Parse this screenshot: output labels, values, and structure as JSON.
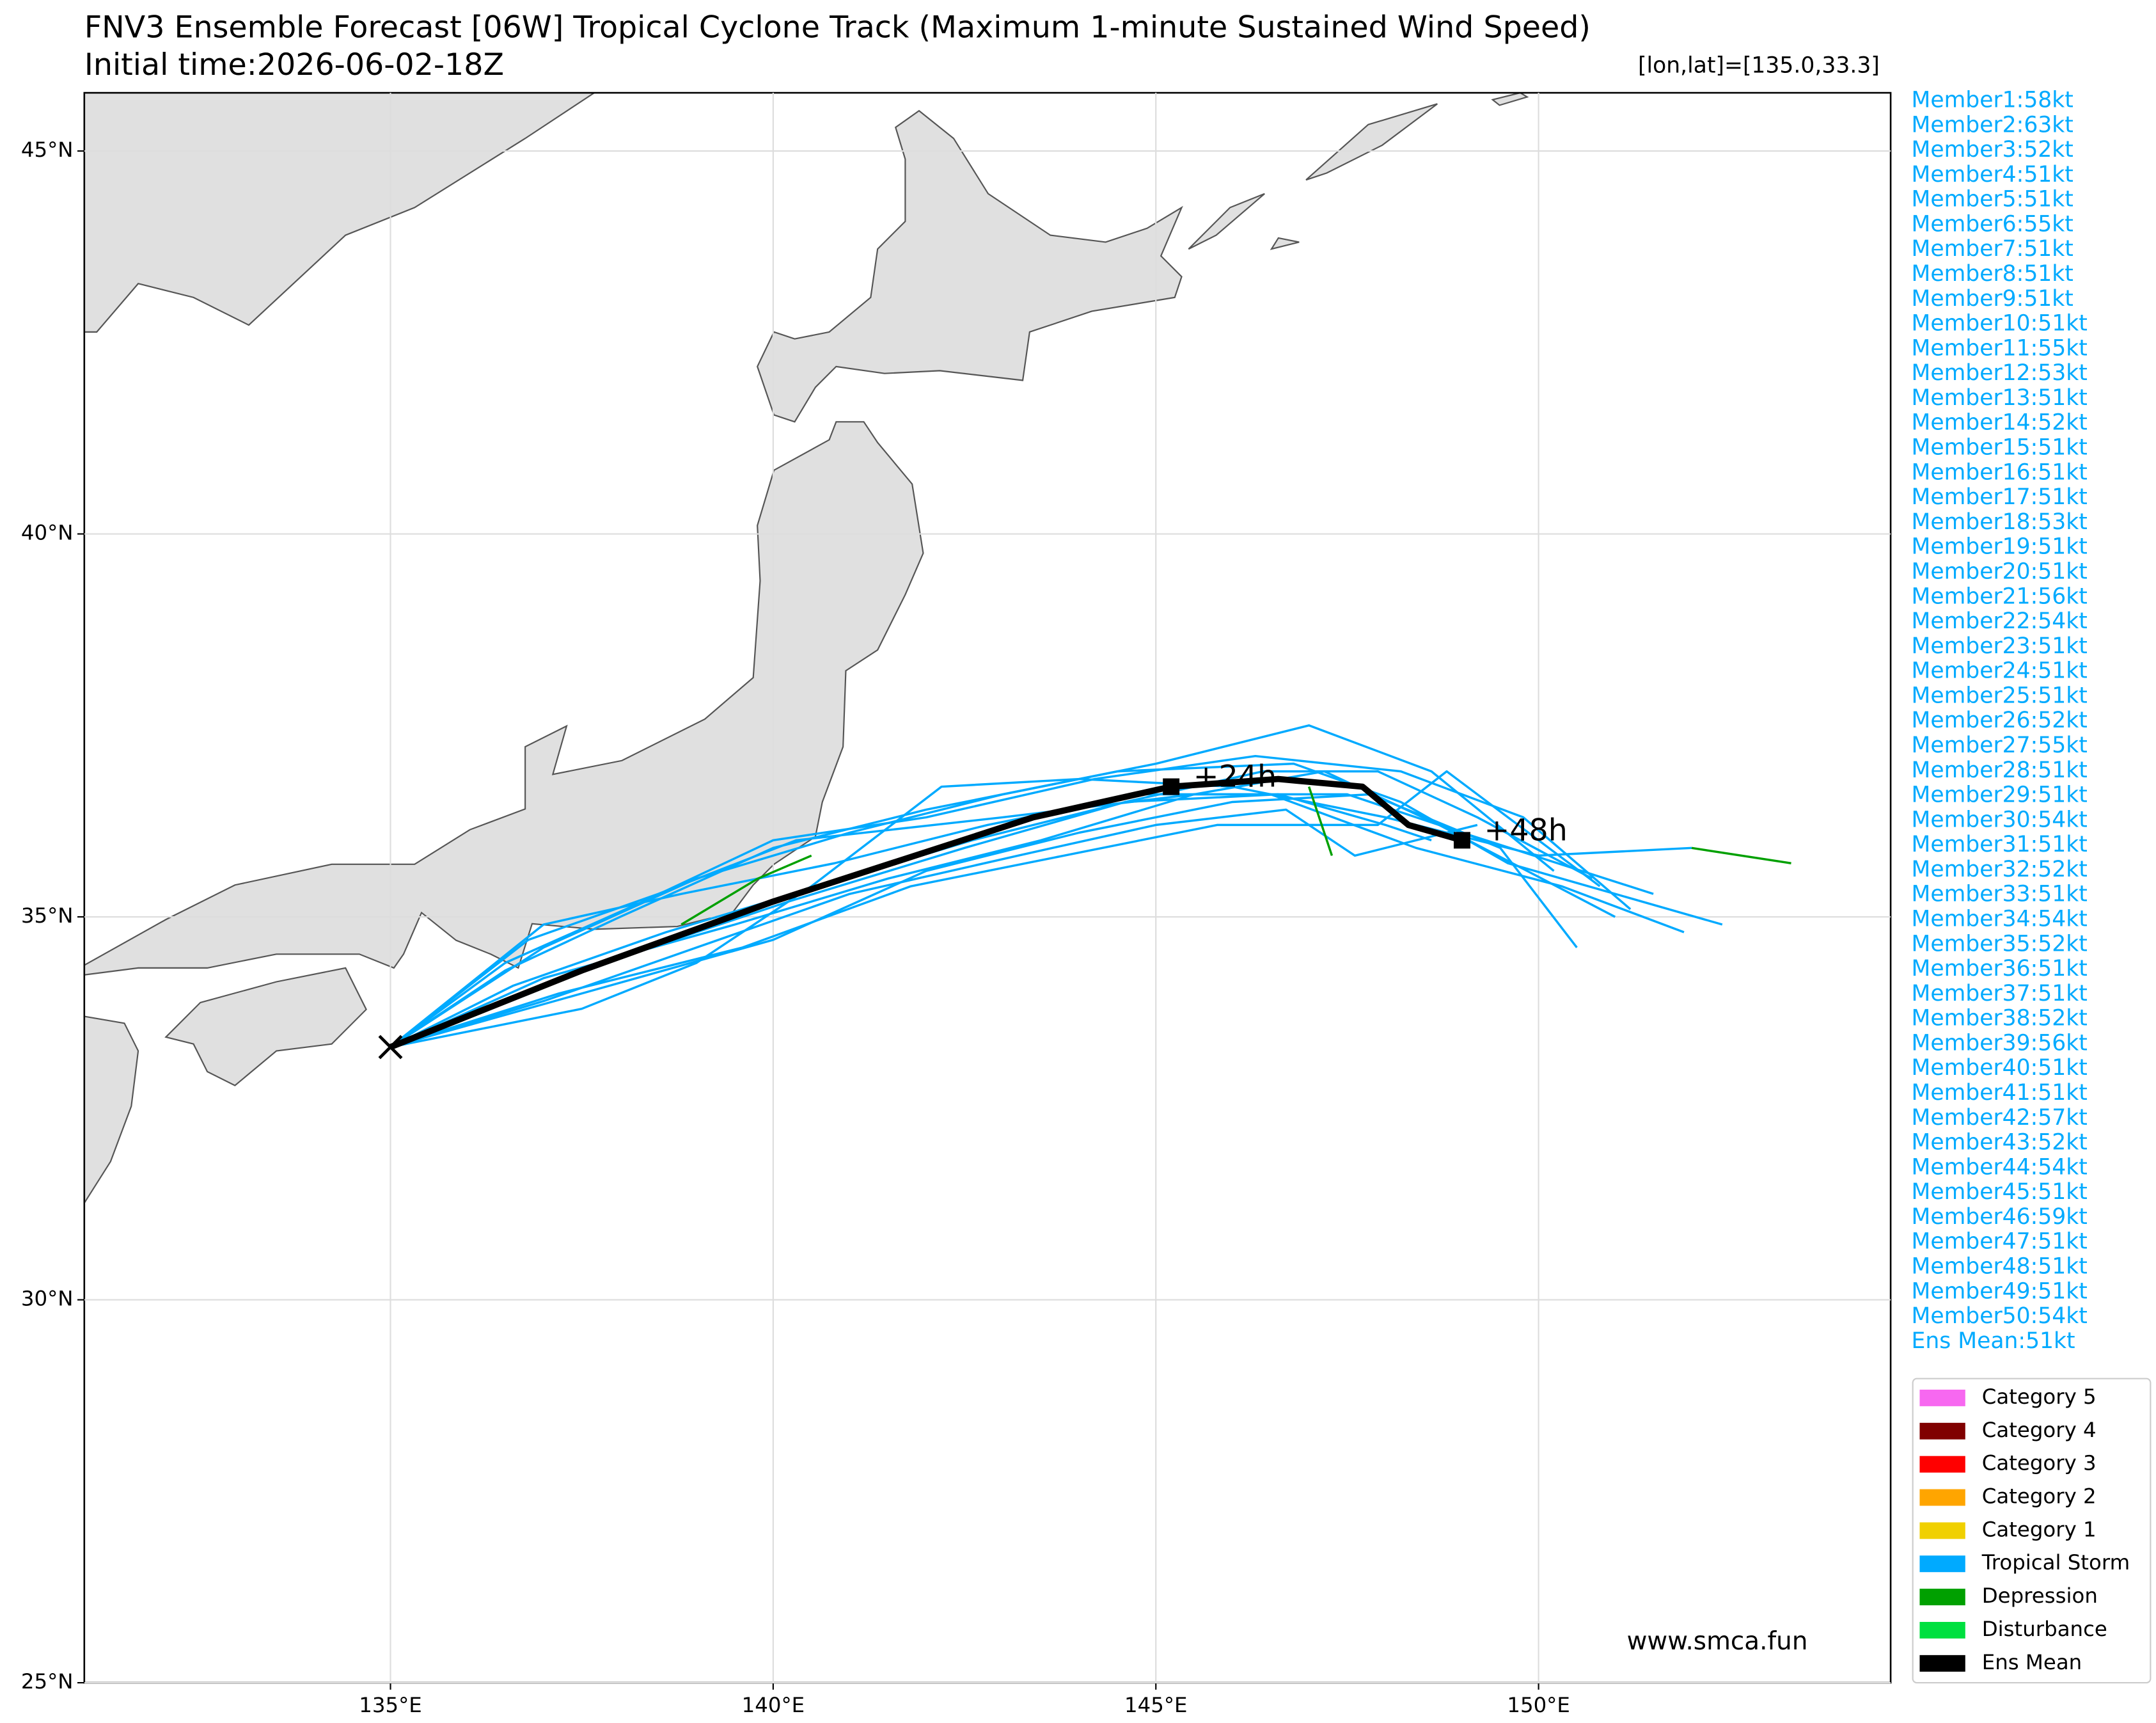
{
  "chart_data": {
    "type": "track-map",
    "title": "FNV3 Ensemble Forecast [06W] Tropical Cyclone Track (Maximum 1-minute Sustained Wind Speed)",
    "subtitle": "Initial time:2026-06-02-18Z",
    "location_label": "[lon,lat]=[135.0,33.3]",
    "watermark": "www.smca.fun",
    "xlim": [
      131,
      154.6
    ],
    "ylim": [
      25,
      45.76
    ],
    "xticks": [
      {
        "value": 135,
        "label": "135°E"
      },
      {
        "value": 140,
        "label": "140°E"
      },
      {
        "value": 145,
        "label": "145°E"
      },
      {
        "value": 150,
        "label": "150°E"
      }
    ],
    "yticks": [
      {
        "value": 25,
        "label": "25°N"
      },
      {
        "value": 30,
        "label": "30°N"
      },
      {
        "value": 35,
        "label": "35°N"
      },
      {
        "value": 40,
        "label": "40°N"
      },
      {
        "value": 45,
        "label": "45°N"
      }
    ],
    "grid": true,
    "tracks": [
      {
        "color": "#00aaff",
        "lon": [
          135,
          137,
          139,
          141,
          143,
          145,
          147,
          148.6,
          150.2
        ],
        "lat": [
          33.3,
          34.6,
          35.5,
          36.1,
          36.6,
          37.0,
          37.5,
          36.9,
          35.6
        ]
      },
      {
        "color": "#00aaff",
        "lon": [
          135,
          137.5,
          140,
          142,
          144,
          146,
          147.8,
          149.5,
          150.5
        ],
        "lat": [
          33.3,
          34.0,
          34.7,
          35.6,
          36.1,
          36.5,
          36.6,
          35.9,
          34.6
        ]
      },
      {
        "color": "#00aaff",
        "lon": [
          135,
          136.5,
          138,
          140,
          142,
          144.5,
          146.8,
          148.2,
          149.6,
          152.4
        ],
        "lat": [
          33.3,
          34.3,
          35.0,
          35.9,
          36.4,
          36.9,
          37.0,
          36.5,
          35.7,
          34.9
        ]
      },
      {
        "color": "#00aaff",
        "lon": [
          135,
          137,
          139.5,
          141.5,
          143.5,
          145.5,
          147.5,
          149,
          151.5
        ],
        "lat": [
          33.3,
          34.2,
          34.9,
          35.5,
          36.0,
          36.6,
          36.6,
          36.1,
          35.3
        ]
      },
      {
        "color": "#00aaff",
        "lon": [
          135,
          137.5,
          139,
          140.5,
          142.2,
          144,
          146,
          148,
          150,
          152
        ],
        "lat": [
          33.3,
          33.8,
          34.4,
          35.4,
          36.7,
          36.8,
          36.7,
          36.3,
          35.8,
          35.9
        ]
      },
      {
        "color": "#00aaff",
        "lon": [
          135,
          136.8,
          138.5,
          140.3,
          143,
          145.5,
          147.2,
          148.7,
          151
        ],
        "lat": [
          33.3,
          34.7,
          35.3,
          36.0,
          36.3,
          36.6,
          36.9,
          36.2,
          35.0
        ]
      },
      {
        "color": "#00aaff",
        "lon": [
          135,
          137,
          139,
          141,
          143.2,
          145,
          146.7,
          147.6,
          149.2
        ],
        "lat": [
          33.3,
          33.9,
          34.6,
          35.3,
          35.8,
          36.2,
          36.4,
          35.8,
          36.2
        ]
      },
      {
        "color": "#00aaff",
        "lon": [
          135,
          136.5,
          138.3,
          140,
          142,
          144.2,
          146.3,
          148.2,
          149.8,
          151.2
        ],
        "lat": [
          33.3,
          34.4,
          35.2,
          36.0,
          36.3,
          36.8,
          37.1,
          36.9,
          36.3,
          35.1
        ]
      },
      {
        "color": "#00aaff",
        "lon": [
          135,
          137.2,
          139.6,
          141.8,
          143.8,
          145.8,
          147.9,
          148.8,
          150.8
        ],
        "lat": [
          33.3,
          34.0,
          34.6,
          35.4,
          35.8,
          36.2,
          36.2,
          36.9,
          35.4
        ]
      },
      {
        "color": "#00aaff",
        "lon": [
          135,
          137,
          138.8,
          140.8,
          142.8,
          144.8,
          146.5,
          148.4,
          150.3,
          151.9
        ],
        "lat": [
          33.3,
          34.9,
          35.3,
          35.7,
          36.2,
          36.6,
          36.6,
          35.9,
          35.4,
          34.8
        ]
      },
      {
        "color": "#00aaff",
        "lon": [
          135,
          137.8,
          140.2,
          142.5,
          144.6,
          146.4,
          147.9,
          149.2,
          150.7
        ],
        "lat": [
          33.3,
          34.4,
          35.2,
          35.9,
          36.5,
          36.9,
          36.9,
          36.3,
          35.5
        ]
      },
      {
        "color": "#00aaff",
        "lon": [
          135,
          136.6,
          138.6,
          140.6,
          142.6,
          144.6,
          146.6,
          148,
          148.6
        ],
        "lat": [
          33.3,
          34.1,
          34.8,
          35.4,
          36.0,
          36.5,
          36.6,
          36.2,
          36.0
        ]
      },
      {
        "color": "#00a000",
        "lon": [
          138.8,
          139.8,
          140.5
        ],
        "lat": [
          34.9,
          35.5,
          35.8
        ]
      },
      {
        "color": "#00a000",
        "lon": [
          147,
          147.3
        ],
        "lat": [
          36.7,
          35.8
        ]
      },
      {
        "color": "#00a000",
        "lon": [
          152,
          153.3
        ],
        "lat": [
          35.9,
          35.7
        ]
      }
    ],
    "mean_track": {
      "color": "#000000",
      "lon": [
        135,
        137.5,
        140,
        143.4,
        145.2,
        146.6,
        147.7,
        148.3,
        149
      ],
      "lat": [
        33.3,
        34.3,
        35.2,
        36.3,
        36.7,
        36.8,
        36.7,
        36.2,
        36.0
      ]
    },
    "annotations": [
      {
        "text": "+24h",
        "lon": 145.2,
        "lat": 36.7
      },
      {
        "text": "+48h",
        "lon": 149,
        "lat": 36.0
      }
    ],
    "member_labels": [
      "Member1:58kt",
      "Member2:63kt",
      "Member3:52kt",
      "Member4:51kt",
      "Member5:51kt",
      "Member6:55kt",
      "Member7:51kt",
      "Member8:51kt",
      "Member9:51kt",
      "Member10:51kt",
      "Member11:55kt",
      "Member12:53kt",
      "Member13:51kt",
      "Member14:52kt",
      "Member15:51kt",
      "Member16:51kt",
      "Member17:51kt",
      "Member18:53kt",
      "Member19:51kt",
      "Member20:51kt",
      "Member21:56kt",
      "Member22:54kt",
      "Member23:51kt",
      "Member24:51kt",
      "Member25:51kt",
      "Member26:52kt",
      "Member27:55kt",
      "Member28:51kt",
      "Member29:51kt",
      "Member30:54kt",
      "Member31:51kt",
      "Member32:52kt",
      "Member33:51kt",
      "Member34:54kt",
      "Member35:52kt",
      "Member36:51kt",
      "Member37:51kt",
      "Member38:52kt",
      "Member39:56kt",
      "Member40:51kt",
      "Member41:51kt",
      "Member42:57kt",
      "Member43:52kt",
      "Member44:54kt",
      "Member45:51kt",
      "Member46:59kt",
      "Member47:51kt",
      "Member48:51kt",
      "Member49:51kt",
      "Member50:54kt",
      "Ens Mean:51kt"
    ],
    "member_label_color": "#00aaff",
    "legend": [
      {
        "name": "Category 5",
        "color": "#f768f0"
      },
      {
        "name": "Category 4",
        "color": "#800000"
      },
      {
        "name": "Category 3",
        "color": "#ff0000"
      },
      {
        "name": "Category 2",
        "color": "#ffa500"
      },
      {
        "name": "Category 1",
        "color": "#f0d000"
      },
      {
        "name": "Tropical Storm",
        "color": "#00aaff"
      },
      {
        "name": "Depression",
        "color": "#00a000"
      },
      {
        "name": "Disturbance",
        "color": "#00e040"
      },
      {
        "name": "Ens Mean",
        "color": "#000000"
      }
    ]
  }
}
